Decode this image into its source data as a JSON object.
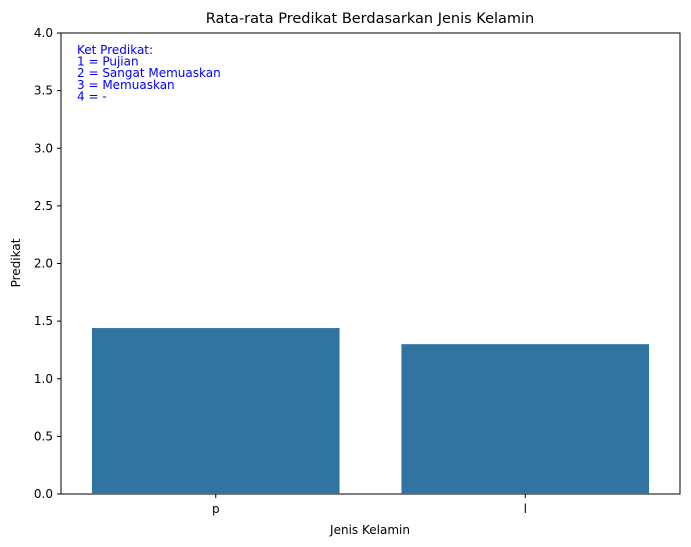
{
  "chart_data": {
    "type": "bar",
    "title": "Rata-rata Predikat Berdasarkan Jenis Kelamin",
    "xlabel": "Jenis Kelamin",
    "ylabel": "Predikat",
    "categories": [
      "p",
      "l"
    ],
    "values": [
      1.44,
      1.3
    ],
    "ylim": [
      0,
      4
    ],
    "yticks": [
      "0.0",
      "0.5",
      "1.0",
      "1.5",
      "2.0",
      "2.5",
      "3.0",
      "3.5",
      "4.0"
    ],
    "grid": false,
    "bar_color": "#3274a1",
    "annotation": {
      "color": "#0000ff",
      "placement": "top-left",
      "lines": [
        "Ket Predikat:",
        "1 = Pujian",
        "2 = Sangat Memuaskan",
        "3 = Memuaskan",
        "4 = -"
      ]
    }
  }
}
